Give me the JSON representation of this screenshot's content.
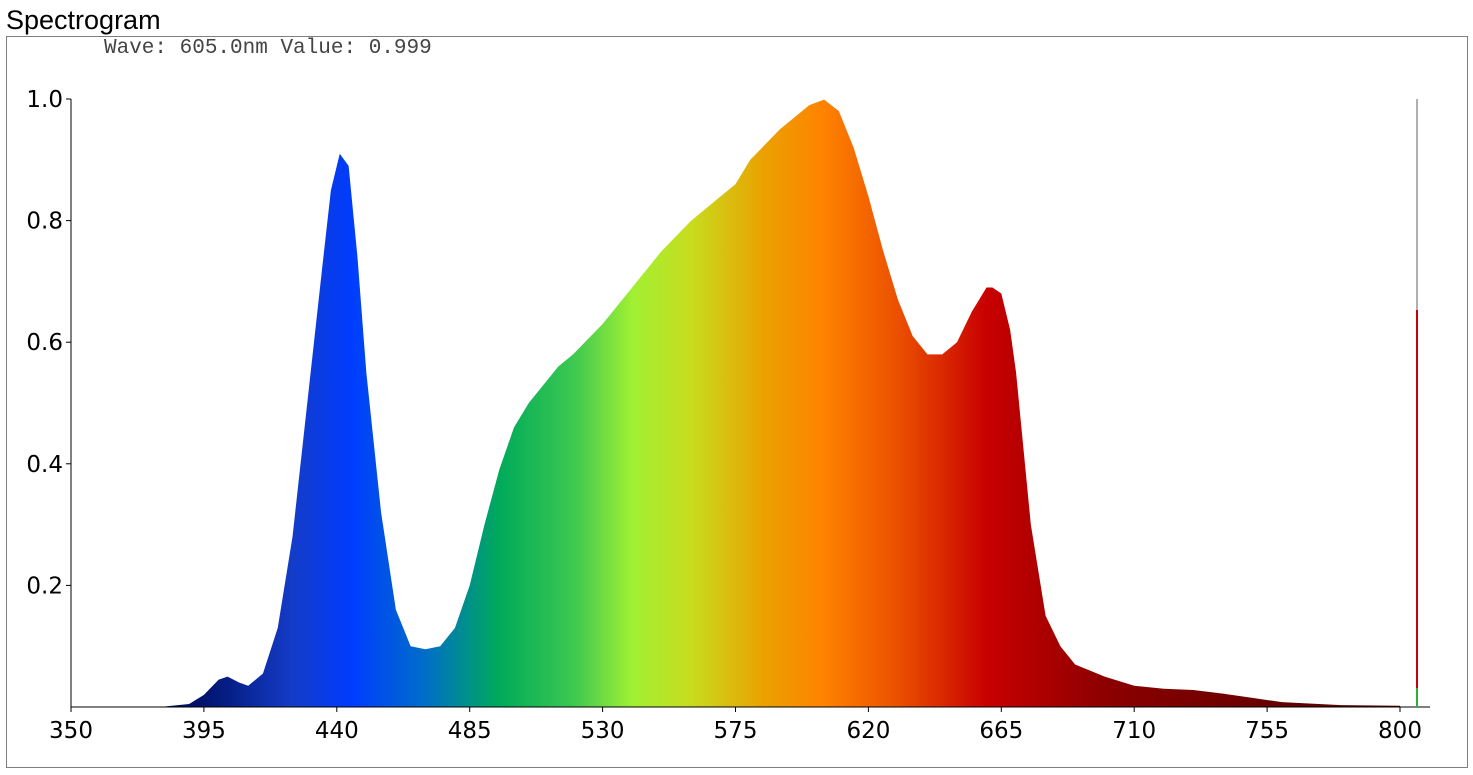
{
  "window": {
    "title": "Spectrogram"
  },
  "readout": {
    "wave_label": "Wave:",
    "wave_value": "605.0nm",
    "value_label": "Value:",
    "value_value": "0.999"
  },
  "chart_data": {
    "type": "area",
    "title": "Spectrogram",
    "xlabel": "",
    "ylabel": "",
    "xlim": [
      350,
      810
    ],
    "ylim": [
      0,
      1.0
    ],
    "x_ticks": [
      "350",
      "395",
      "440",
      "485",
      "530",
      "575",
      "620",
      "665",
      "710",
      "755",
      "800"
    ],
    "y_ticks": [
      "0.2",
      "0.4",
      "0.6",
      "0.8",
      "1.0"
    ],
    "fill": "wavelength-colored spectrum",
    "series": [
      {
        "x": [
          350,
          380,
          390,
          395,
          400,
          403,
          407,
          410,
          415,
          420,
          425,
          430,
          435,
          438,
          441,
          444,
          447,
          450,
          455,
          460,
          465,
          470,
          475,
          480,
          485,
          490,
          495,
          500,
          505,
          510,
          515,
          520,
          530,
          540,
          550,
          560,
          570,
          575,
          580,
          590,
          600,
          605,
          610,
          615,
          620,
          625,
          630,
          635,
          640,
          645,
          650,
          655,
          660,
          662,
          665,
          668,
          670,
          675,
          680,
          685,
          690,
          700,
          710,
          720,
          730,
          740,
          750,
          760,
          780,
          800
        ],
        "y": [
          0.0,
          0.0,
          0.005,
          0.02,
          0.045,
          0.05,
          0.04,
          0.035,
          0.055,
          0.13,
          0.28,
          0.5,
          0.72,
          0.85,
          0.91,
          0.89,
          0.74,
          0.55,
          0.32,
          0.16,
          0.1,
          0.095,
          0.1,
          0.13,
          0.2,
          0.3,
          0.39,
          0.46,
          0.5,
          0.53,
          0.56,
          0.58,
          0.63,
          0.69,
          0.75,
          0.8,
          0.84,
          0.86,
          0.9,
          0.95,
          0.99,
          0.999,
          0.98,
          0.92,
          0.84,
          0.75,
          0.67,
          0.61,
          0.58,
          0.58,
          0.6,
          0.65,
          0.69,
          0.69,
          0.68,
          0.62,
          0.55,
          0.3,
          0.15,
          0.1,
          0.07,
          0.05,
          0.035,
          0.03,
          0.028,
          0.022,
          0.015,
          0.008,
          0.003,
          0.002
        ]
      }
    ],
    "colors": {
      "frame": "#7f7f7f",
      "axis": "#000000",
      "cursor_grey": "#b0b0b0",
      "cursor_red": "#cc0000",
      "cursor_green": "#2fae2f"
    }
  }
}
